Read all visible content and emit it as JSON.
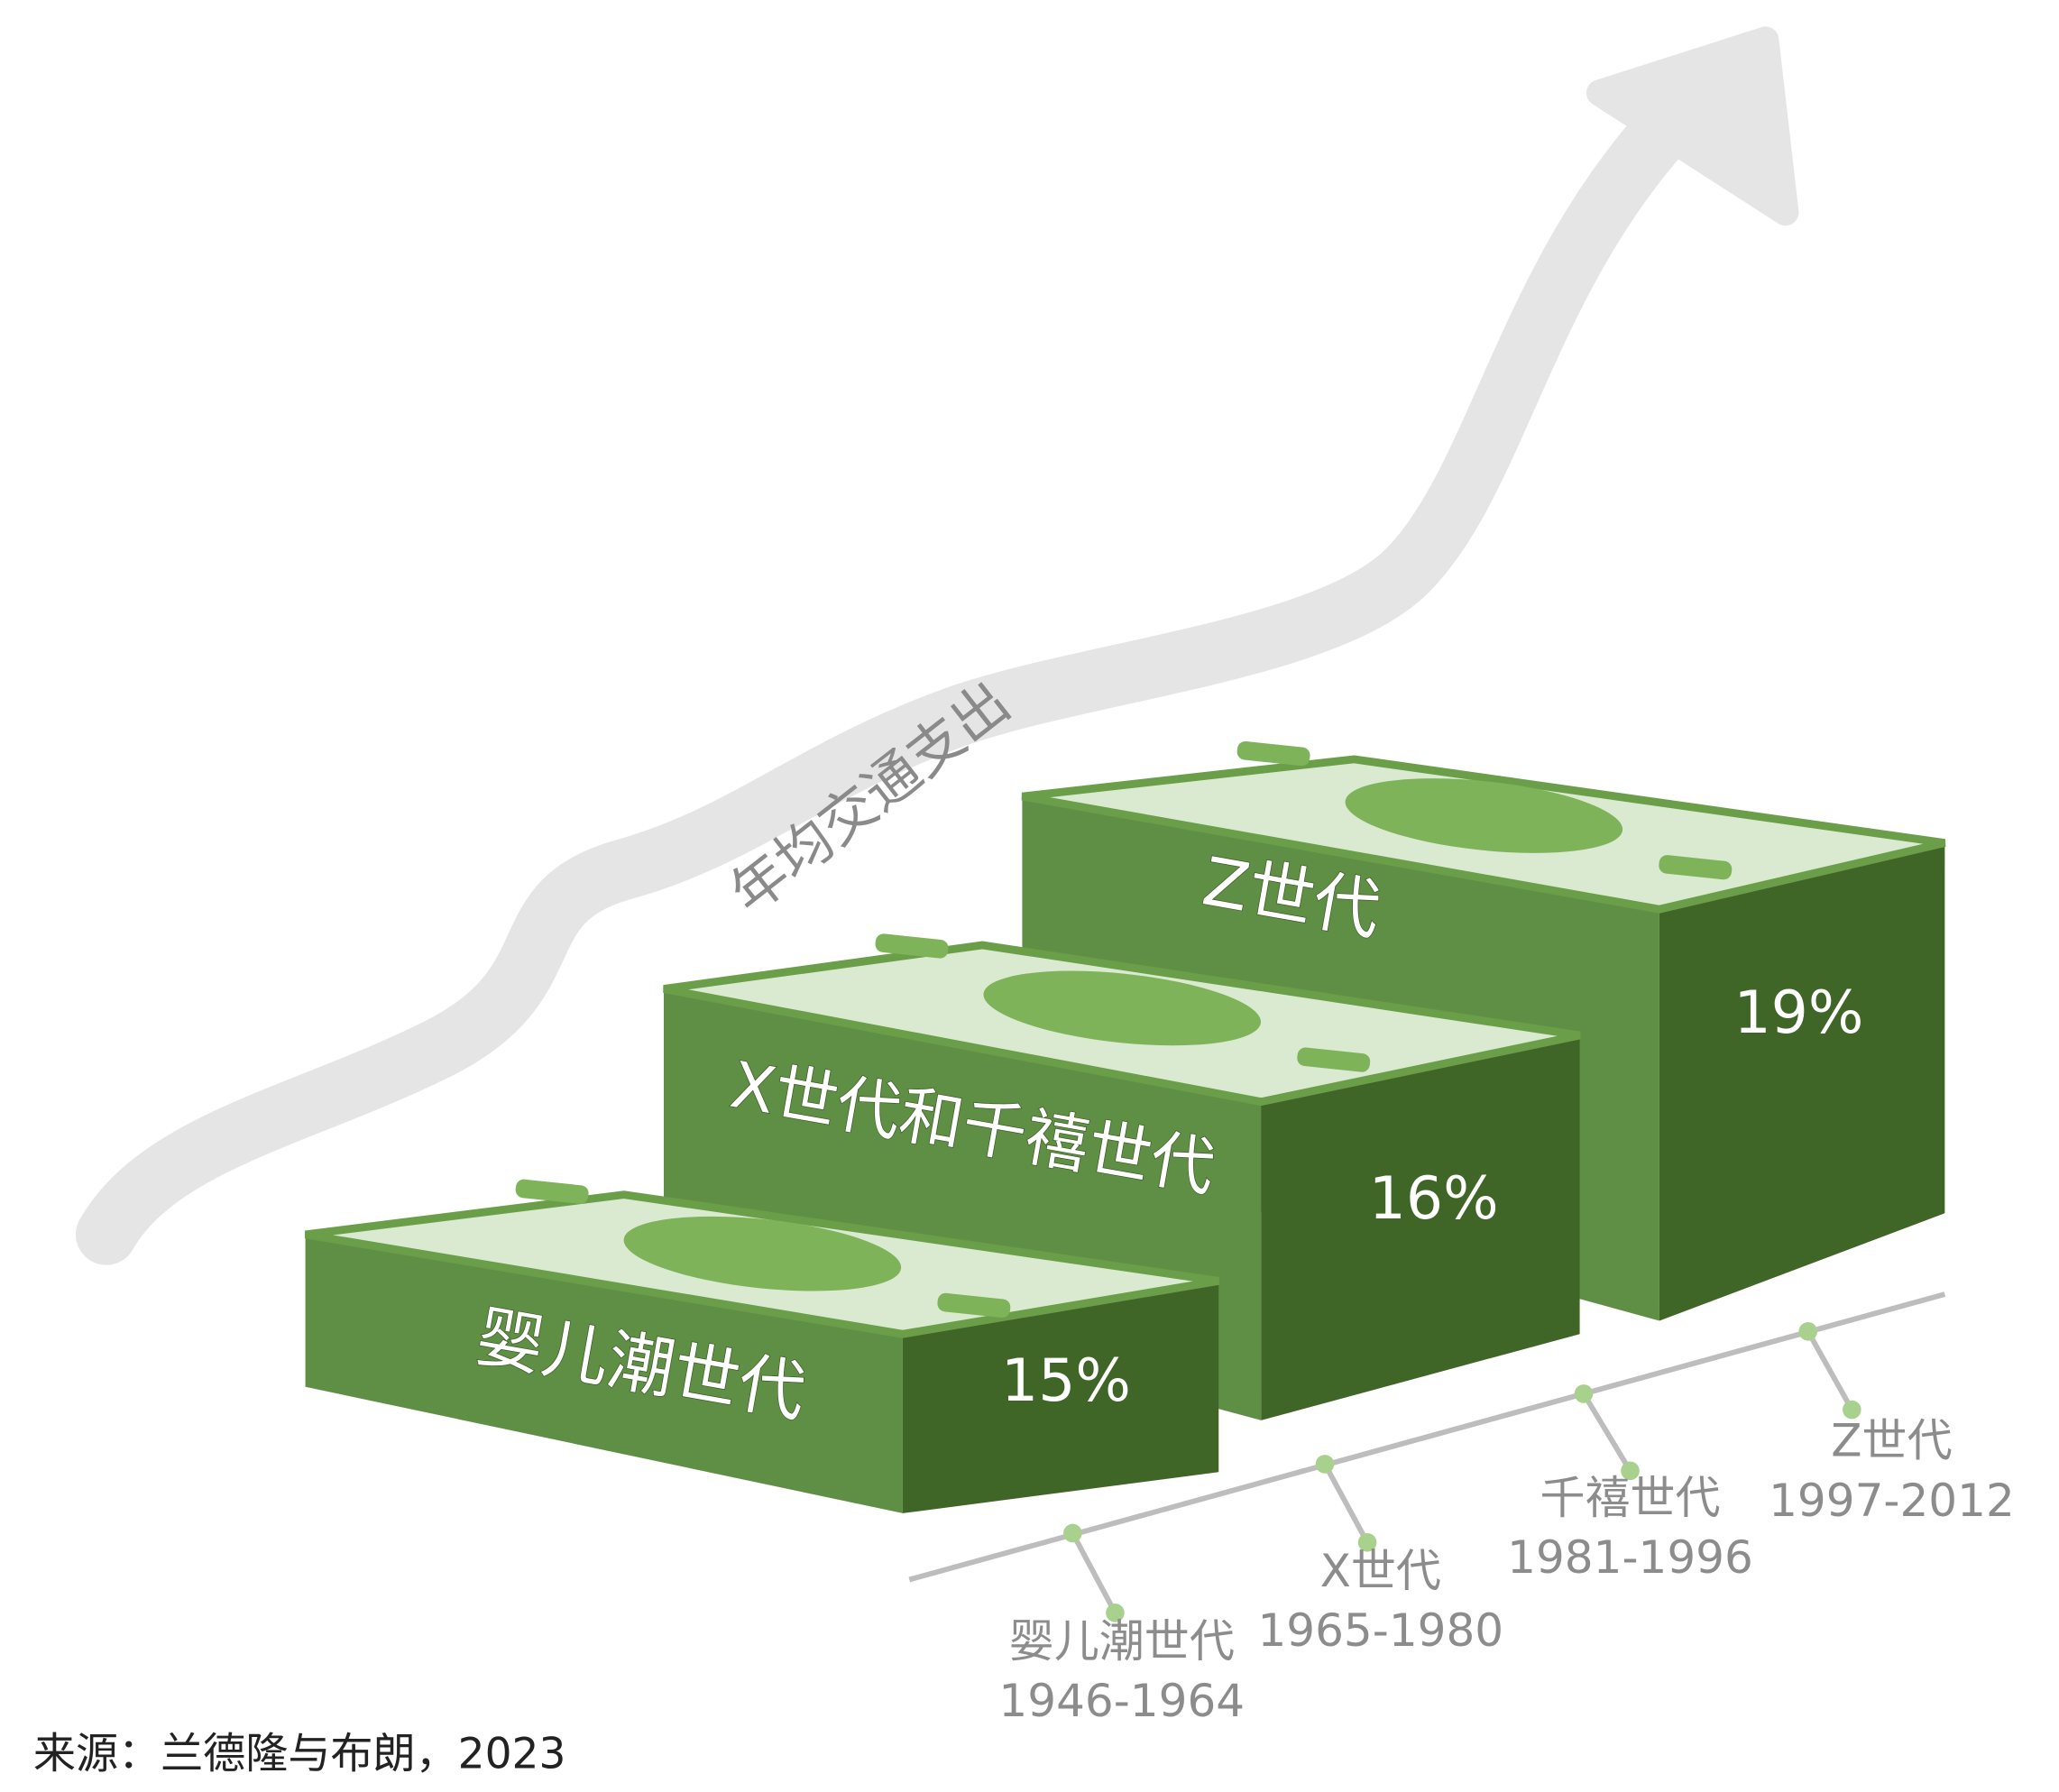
{
  "arrow_label": "年均交通支出",
  "blocks": [
    {
      "name": "婴儿潮世代",
      "share": "15%"
    },
    {
      "name": "X世代和千禧世代",
      "share": "16%"
    },
    {
      "name": "Z世代",
      "share": "19%"
    }
  ],
  "timeline": [
    {
      "name": "婴儿潮世代",
      "years": "1946-1964"
    },
    {
      "name": "X世代",
      "years": "1965-1980"
    },
    {
      "name": "千禧世代",
      "years": "1981-1996"
    },
    {
      "name": "Z世代",
      "years": "1997-2012"
    }
  ],
  "source": "来源：兰德隆与布朗，2023"
}
